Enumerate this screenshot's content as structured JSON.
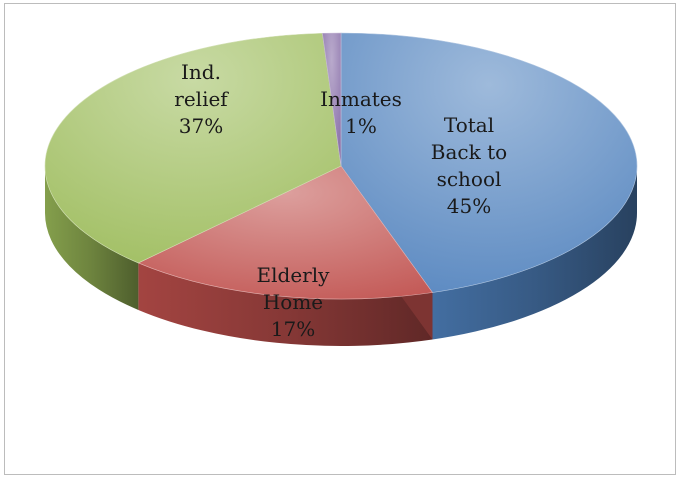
{
  "chart_data": {
    "type": "pie",
    "style": "3d",
    "slices": [
      {
        "lines": [
          "Total",
          "Back to",
          "school",
          "45%"
        ],
        "value": 45,
        "color": "#4f81bd"
      },
      {
        "lines": [
          "Elderly",
          "Home",
          "17%"
        ],
        "value": 17,
        "color": "#c0504d"
      },
      {
        "lines": [
          "Ind.",
          "relief",
          "37%"
        ],
        "value": 37,
        "color": "#9bbb59"
      },
      {
        "lines": [
          "Inmates",
          "1%"
        ],
        "value": 1,
        "color": "#8064a2"
      }
    ],
    "legend": "none"
  }
}
